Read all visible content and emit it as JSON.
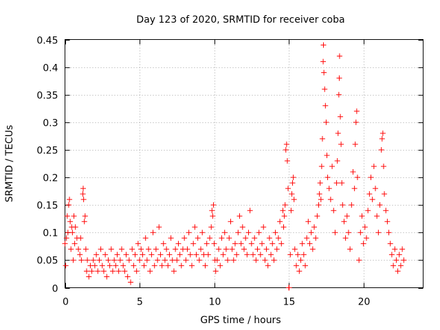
{
  "chart_data": {
    "type": "scatter",
    "title": "Day 123 of 2020, SRMTID for receiver coba",
    "xlabel": "GPS time / hours",
    "ylabel": "SRMTID / TECUs",
    "xlim": [
      0,
      24
    ],
    "ylim": [
      0,
      0.45
    ],
    "xticks": [
      0,
      5,
      10,
      15,
      20
    ],
    "xtick_labels": [
      "0",
      "5",
      "10",
      "15",
      "20"
    ],
    "yticks": [
      0,
      0.05,
      0.1,
      0.15,
      0.2,
      0.25,
      0.3,
      0.35,
      0.4,
      0.45
    ],
    "ytick_labels": [
      "0",
      "0.05",
      "0.1",
      "0.15",
      "0.2",
      "0.25",
      "0.3",
      "0.35",
      "0.4",
      "0.45"
    ],
    "grid": true,
    "marker": "+",
    "color": "#ff0000",
    "series": [
      {
        "name": "SRMTID",
        "points": [
          [
            0.0,
            0.08
          ],
          [
            0.05,
            0.04
          ],
          [
            0.1,
            0.09
          ],
          [
            0.15,
            0.13
          ],
          [
            0.2,
            0.1
          ],
          [
            0.25,
            0.15
          ],
          [
            0.3,
            0.16
          ],
          [
            0.35,
            0.12
          ],
          [
            0.4,
            0.07
          ],
          [
            0.45,
            0.11
          ],
          [
            0.5,
            0.1
          ],
          [
            0.55,
            0.05
          ],
          [
            0.6,
            0.13
          ],
          [
            0.65,
            0.08
          ],
          [
            0.7,
            0.11
          ],
          [
            0.8,
            0.09
          ],
          [
            0.9,
            0.07
          ],
          [
            1.0,
            0.06
          ],
          [
            1.05,
            0.09
          ],
          [
            1.1,
            0.05
          ],
          [
            1.2,
            0.17
          ],
          [
            1.22,
            0.18
          ],
          [
            1.25,
            0.16
          ],
          [
            1.3,
            0.12
          ],
          [
            1.35,
            0.13
          ],
          [
            1.4,
            0.07
          ],
          [
            1.45,
            0.03
          ],
          [
            1.5,
            0.05
          ],
          [
            1.6,
            0.02
          ],
          [
            1.7,
            0.04
          ],
          [
            1.8,
            0.03
          ],
          [
            1.9,
            0.05
          ],
          [
            2.0,
            0.04
          ],
          [
            2.1,
            0.06
          ],
          [
            2.2,
            0.03
          ],
          [
            2.3,
            0.05
          ],
          [
            2.4,
            0.07
          ],
          [
            2.5,
            0.04
          ],
          [
            2.6,
            0.03
          ],
          [
            2.7,
            0.06
          ],
          [
            2.8,
            0.02
          ],
          [
            2.9,
            0.05
          ],
          [
            3.0,
            0.04
          ],
          [
            3.1,
            0.07
          ],
          [
            3.2,
            0.03
          ],
          [
            3.3,
            0.05
          ],
          [
            3.4,
            0.04
          ],
          [
            3.5,
            0.06
          ],
          [
            3.6,
            0.03
          ],
          [
            3.7,
            0.05
          ],
          [
            3.8,
            0.07
          ],
          [
            3.9,
            0.04
          ],
          [
            4.0,
            0.03
          ],
          [
            4.1,
            0.06
          ],
          [
            4.2,
            0.02
          ],
          [
            4.3,
            0.05
          ],
          [
            4.4,
            0.01
          ],
          [
            4.5,
            0.07
          ],
          [
            4.6,
            0.04
          ],
          [
            4.7,
            0.06
          ],
          [
            4.8,
            0.03
          ],
          [
            4.9,
            0.08
          ],
          [
            5.0,
            0.05
          ],
          [
            5.1,
            0.07
          ],
          [
            5.2,
            0.06
          ],
          [
            5.3,
            0.04
          ],
          [
            5.4,
            0.09
          ],
          [
            5.5,
            0.05
          ],
          [
            5.6,
            0.07
          ],
          [
            5.7,
            0.03
          ],
          [
            5.8,
            0.06
          ],
          [
            5.9,
            0.1
          ],
          [
            6.0,
            0.04
          ],
          [
            6.1,
            0.07
          ],
          [
            6.2,
            0.05
          ],
          [
            6.3,
            0.11
          ],
          [
            6.4,
            0.06
          ],
          [
            6.5,
            0.04
          ],
          [
            6.6,
            0.08
          ],
          [
            6.7,
            0.05
          ],
          [
            6.8,
            0.07
          ],
          [
            6.9,
            0.04
          ],
          [
            7.0,
            0.06
          ],
          [
            7.1,
            0.09
          ],
          [
            7.2,
            0.05
          ],
          [
            7.3,
            0.03
          ],
          [
            7.4,
            0.07
          ],
          [
            7.5,
            0.05
          ],
          [
            7.6,
            0.08
          ],
          [
            7.7,
            0.06
          ],
          [
            7.8,
            0.04
          ],
          [
            7.9,
            0.07
          ],
          [
            8.0,
            0.09
          ],
          [
            8.1,
            0.05
          ],
          [
            8.2,
            0.07
          ],
          [
            8.3,
            0.1
          ],
          [
            8.4,
            0.06
          ],
          [
            8.5,
            0.04
          ],
          [
            8.6,
            0.08
          ],
          [
            8.7,
            0.11
          ],
          [
            8.8,
            0.06
          ],
          [
            8.9,
            0.09
          ],
          [
            9.0,
            0.05
          ],
          [
            9.1,
            0.07
          ],
          [
            9.2,
            0.1
          ],
          [
            9.3,
            0.06
          ],
          [
            9.4,
            0.04
          ],
          [
            9.5,
            0.08
          ],
          [
            9.6,
            0.06
          ],
          [
            9.7,
            0.09
          ],
          [
            9.8,
            0.11
          ],
          [
            9.85,
            0.14
          ],
          [
            9.9,
            0.13
          ],
          [
            9.95,
            0.15
          ],
          [
            10.0,
            0.08
          ],
          [
            10.05,
            0.05
          ],
          [
            10.1,
            0.03
          ],
          [
            10.2,
            0.05
          ],
          [
            10.3,
            0.07
          ],
          [
            10.4,
            0.04
          ],
          [
            10.5,
            0.09
          ],
          [
            10.6,
            0.06
          ],
          [
            10.7,
            0.1
          ],
          [
            10.8,
            0.07
          ],
          [
            10.9,
            0.05
          ],
          [
            11.0,
            0.09
          ],
          [
            11.1,
            0.12
          ],
          [
            11.2,
            0.07
          ],
          [
            11.3,
            0.05
          ],
          [
            11.4,
            0.08
          ],
          [
            11.5,
            0.06
          ],
          [
            11.6,
            0.1
          ],
          [
            11.7,
            0.13
          ],
          [
            11.8,
            0.08
          ],
          [
            11.9,
            0.11
          ],
          [
            12.0,
            0.07
          ],
          [
            12.1,
            0.09
          ],
          [
            12.2,
            0.06
          ],
          [
            12.3,
            0.1
          ],
          [
            12.4,
            0.14
          ],
          [
            12.5,
            0.08
          ],
          [
            12.6,
            0.06
          ],
          [
            12.7,
            0.09
          ],
          [
            12.8,
            0.05
          ],
          [
            12.9,
            0.07
          ],
          [
            13.0,
            0.1
          ],
          [
            13.1,
            0.06
          ],
          [
            13.2,
            0.08
          ],
          [
            13.3,
            0.11
          ],
          [
            13.4,
            0.05
          ],
          [
            13.5,
            0.07
          ],
          [
            13.6,
            0.04
          ],
          [
            13.7,
            0.09
          ],
          [
            13.8,
            0.06
          ],
          [
            13.9,
            0.08
          ],
          [
            14.0,
            0.05
          ],
          [
            14.1,
            0.1
          ],
          [
            14.2,
            0.07
          ],
          [
            14.3,
            0.09
          ],
          [
            14.4,
            0.12
          ],
          [
            14.5,
            0.08
          ],
          [
            14.6,
            0.14
          ],
          [
            14.65,
            0.11
          ],
          [
            14.7,
            0.13
          ],
          [
            14.75,
            0.15
          ],
          [
            14.8,
            0.25
          ],
          [
            14.85,
            0.26
          ],
          [
            14.9,
            0.23
          ],
          [
            14.95,
            0.18
          ],
          [
            15.0,
            0.0
          ],
          [
            15.02,
            0.0
          ],
          [
            15.1,
            0.06
          ],
          [
            15.15,
            0.14
          ],
          [
            15.2,
            0.17
          ],
          [
            15.25,
            0.19
          ],
          [
            15.3,
            0.2
          ],
          [
            15.35,
            0.16
          ],
          [
            15.4,
            0.07
          ],
          [
            15.5,
            0.04
          ],
          [
            15.6,
            0.06
          ],
          [
            15.7,
            0.03
          ],
          [
            15.8,
            0.05
          ],
          [
            15.9,
            0.08
          ],
          [
            16.0,
            0.06
          ],
          [
            16.1,
            0.04
          ],
          [
            16.2,
            0.09
          ],
          [
            16.3,
            0.12
          ],
          [
            16.4,
            0.08
          ],
          [
            16.5,
            0.1
          ],
          [
            16.6,
            0.07
          ],
          [
            16.7,
            0.11
          ],
          [
            16.8,
            0.09
          ],
          [
            16.9,
            0.13
          ],
          [
            17.0,
            0.15
          ],
          [
            17.05,
            0.17
          ],
          [
            17.1,
            0.19
          ],
          [
            17.15,
            0.16
          ],
          [
            17.2,
            0.22
          ],
          [
            17.25,
            0.27
          ],
          [
            17.3,
            0.41
          ],
          [
            17.32,
            0.44
          ],
          [
            17.35,
            0.39
          ],
          [
            17.4,
            0.36
          ],
          [
            17.45,
            0.33
          ],
          [
            17.5,
            0.3
          ],
          [
            17.55,
            0.24
          ],
          [
            17.6,
            0.2
          ],
          [
            17.7,
            0.18
          ],
          [
            17.8,
            0.16
          ],
          [
            17.9,
            0.22
          ],
          [
            18.0,
            0.14
          ],
          [
            18.1,
            0.1
          ],
          [
            18.2,
            0.19
          ],
          [
            18.25,
            0.23
          ],
          [
            18.3,
            0.28
          ],
          [
            18.35,
            0.35
          ],
          [
            18.38,
            0.38
          ],
          [
            18.4,
            0.42
          ],
          [
            18.45,
            0.31
          ],
          [
            18.5,
            0.26
          ],
          [
            18.55,
            0.19
          ],
          [
            18.6,
            0.15
          ],
          [
            18.7,
            0.12
          ],
          [
            18.8,
            0.09
          ],
          [
            18.9,
            0.13
          ],
          [
            19.0,
            0.1
          ],
          [
            19.1,
            0.07
          ],
          [
            19.2,
            0.15
          ],
          [
            19.3,
            0.21
          ],
          [
            19.4,
            0.18
          ],
          [
            19.45,
            0.26
          ],
          [
            19.5,
            0.3
          ],
          [
            19.55,
            0.32
          ],
          [
            19.6,
            0.2
          ],
          [
            19.7,
            0.05
          ],
          [
            19.8,
            0.1
          ],
          [
            19.9,
            0.13
          ],
          [
            20.0,
            0.08
          ],
          [
            20.1,
            0.11
          ],
          [
            20.2,
            0.09
          ],
          [
            20.3,
            0.14
          ],
          [
            20.4,
            0.17
          ],
          [
            20.5,
            0.2
          ],
          [
            20.6,
            0.16
          ],
          [
            20.7,
            0.22
          ],
          [
            20.8,
            0.18
          ],
          [
            20.9,
            0.13
          ],
          [
            21.0,
            0.1
          ],
          [
            21.1,
            0.15
          ],
          [
            21.2,
            0.25
          ],
          [
            21.25,
            0.27
          ],
          [
            21.3,
            0.28
          ],
          [
            21.35,
            0.22
          ],
          [
            21.4,
            0.17
          ],
          [
            21.5,
            0.14
          ],
          [
            21.6,
            0.12
          ],
          [
            21.7,
            0.1
          ],
          [
            21.8,
            0.08
          ],
          [
            21.9,
            0.06
          ],
          [
            22.0,
            0.04
          ],
          [
            22.1,
            0.07
          ],
          [
            22.2,
            0.05
          ],
          [
            22.3,
            0.03
          ],
          [
            22.4,
            0.06
          ],
          [
            22.5,
            0.04
          ],
          [
            22.6,
            0.07
          ],
          [
            22.7,
            0.05
          ]
        ]
      }
    ]
  }
}
